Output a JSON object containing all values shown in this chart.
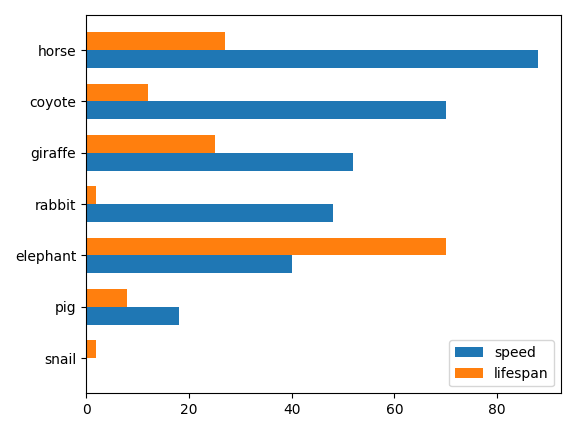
{
  "animals": [
    "horse",
    "coyote",
    "giraffe",
    "rabbit",
    "elephant",
    "pig",
    "snail"
  ],
  "speed": [
    88,
    70,
    52,
    48,
    40,
    18,
    0.03
  ],
  "lifespan": [
    27,
    12,
    25,
    2,
    70,
    8,
    2
  ],
  "speed_color": "#1f77b4",
  "lifespan_color": "#ff7f0e",
  "legend_labels": [
    "speed",
    "lifespan"
  ],
  "bar_width": 0.35,
  "background_color": "#ffffff"
}
